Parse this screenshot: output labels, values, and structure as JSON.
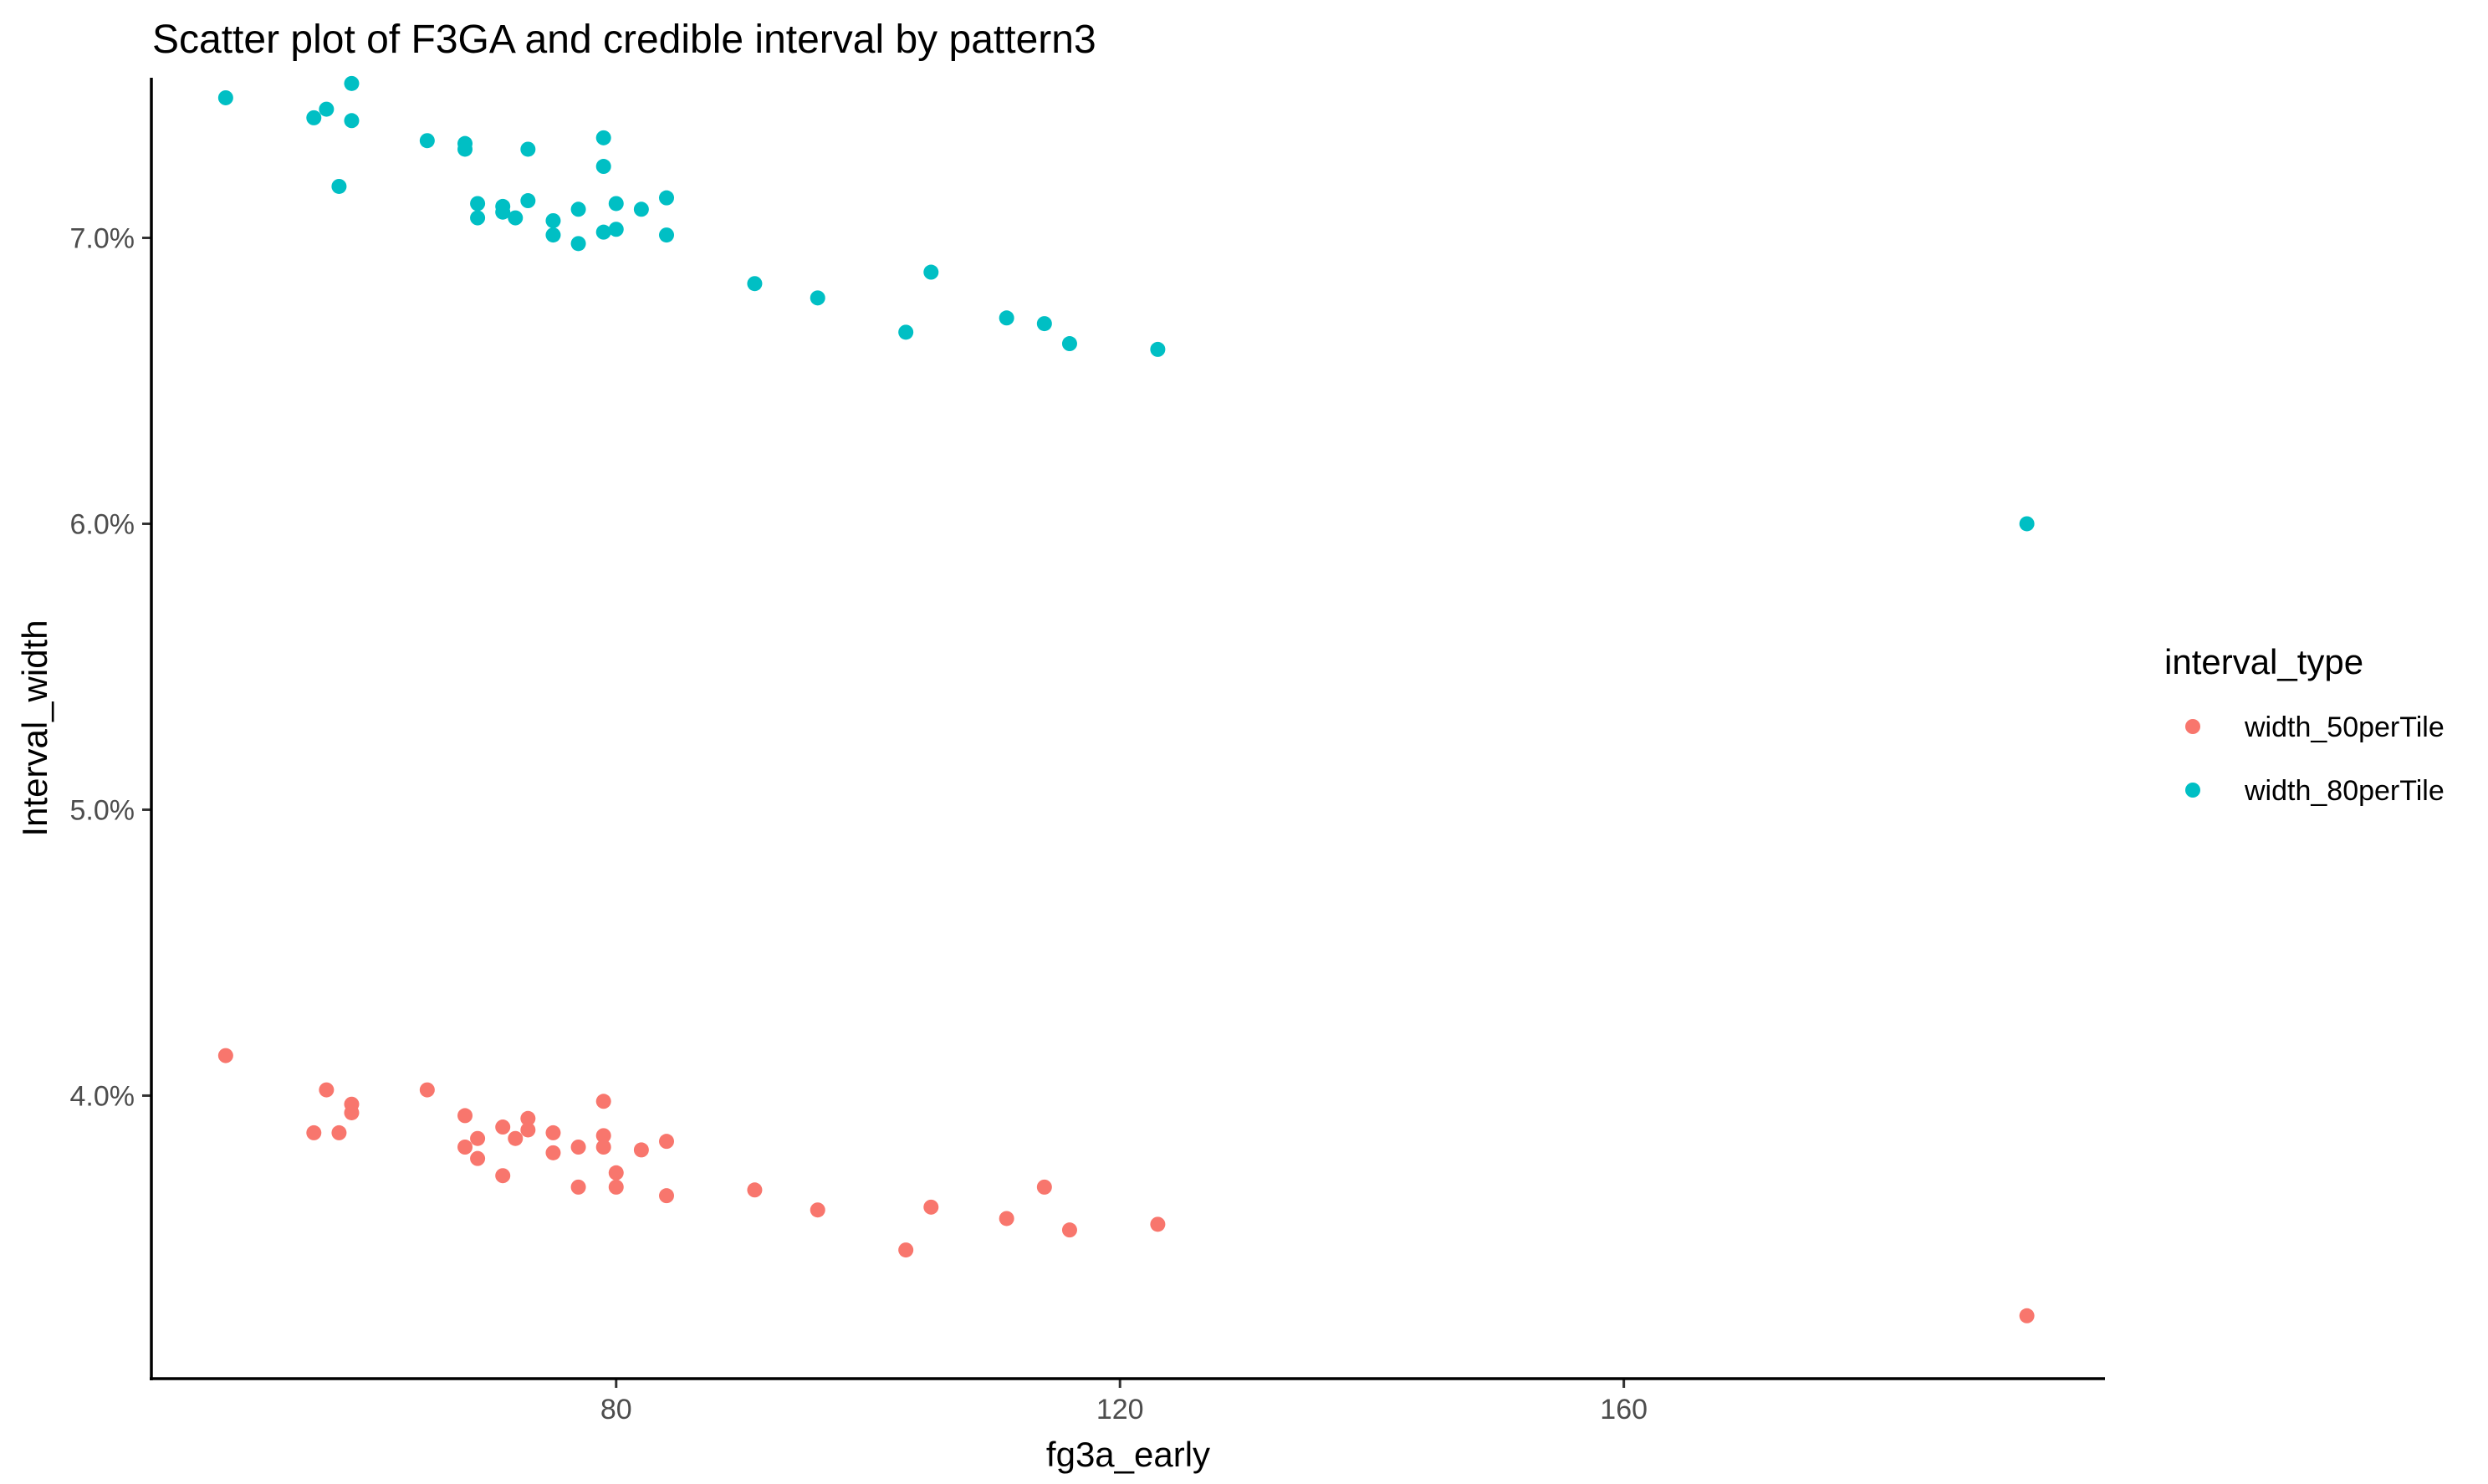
{
  "chart_data": {
    "type": "scatter",
    "title": "Scatter plot of F3GA and credible interval by pattern3",
    "xlabel": "fg3a_early",
    "ylabel": "Interval_width",
    "x_ticks": [
      80,
      120,
      160
    ],
    "x_tick_labels": [
      "80",
      "120",
      "160"
    ],
    "y_ticks": [
      0.04,
      0.05,
      0.06,
      0.07
    ],
    "y_tick_labels": [
      "4.0%",
      "5.0%",
      "6.0%",
      "7.0%"
    ],
    "xlim": [
      43.1,
      198.2
    ],
    "ylim": [
      0.0301,
      0.0756
    ],
    "grid": false,
    "legend": {
      "title": "interval_type",
      "position": "right"
    },
    "series": [
      {
        "name": "width_50perTile",
        "color": "#F8766D",
        "points": [
          [
            49,
            0.0414
          ],
          [
            56,
            0.0387
          ],
          [
            57,
            0.0402
          ],
          [
            58,
            0.0387
          ],
          [
            59,
            0.0397
          ],
          [
            59,
            0.0394
          ],
          [
            65,
            0.0402
          ],
          [
            68,
            0.0393
          ],
          [
            68,
            0.0382
          ],
          [
            69,
            0.0385
          ],
          [
            69,
            0.0378
          ],
          [
            71,
            0.0389
          ],
          [
            71,
            0.0372
          ],
          [
            72,
            0.0385
          ],
          [
            73,
            0.0392
          ],
          [
            73,
            0.0388
          ],
          [
            75,
            0.0387
          ],
          [
            75,
            0.038
          ],
          [
            77,
            0.0382
          ],
          [
            77,
            0.0368
          ],
          [
            79,
            0.0398
          ],
          [
            79,
            0.0386
          ],
          [
            79,
            0.0382
          ],
          [
            80,
            0.0373
          ],
          [
            80,
            0.0368
          ],
          [
            82,
            0.0381
          ],
          [
            84,
            0.0384
          ],
          [
            84,
            0.0365
          ],
          [
            91,
            0.0367
          ],
          [
            96,
            0.036
          ],
          [
            103,
            0.0346
          ],
          [
            105,
            0.0361
          ],
          [
            111,
            0.0357
          ],
          [
            114,
            0.0368
          ],
          [
            116,
            0.0353
          ],
          [
            123,
            0.0355
          ],
          [
            192,
            0.0323
          ]
        ]
      },
      {
        "name": "width_80perTile",
        "color": "#00BFC4",
        "points": [
          [
            49,
            0.0749
          ],
          [
            56,
            0.0742
          ],
          [
            57,
            0.0745
          ],
          [
            58,
            0.0718
          ],
          [
            59,
            0.0754
          ],
          [
            59,
            0.0741
          ],
          [
            65,
            0.0734
          ],
          [
            68,
            0.0733
          ],
          [
            68,
            0.0731
          ],
          [
            69,
            0.0712
          ],
          [
            69,
            0.0707
          ],
          [
            71,
            0.0711
          ],
          [
            71,
            0.0709
          ],
          [
            72,
            0.0707
          ],
          [
            73,
            0.0731
          ],
          [
            73,
            0.0713
          ],
          [
            75,
            0.0706
          ],
          [
            75,
            0.0701
          ],
          [
            77,
            0.071
          ],
          [
            77,
            0.0698
          ],
          [
            79,
            0.0735
          ],
          [
            79,
            0.0725
          ],
          [
            79,
            0.0702
          ],
          [
            80,
            0.0712
          ],
          [
            80,
            0.0703
          ],
          [
            82,
            0.071
          ],
          [
            84,
            0.0714
          ],
          [
            84,
            0.0701
          ],
          [
            91,
            0.0684
          ],
          [
            96,
            0.0679
          ],
          [
            103,
            0.0667
          ],
          [
            105,
            0.0688
          ],
          [
            111,
            0.0672
          ],
          [
            114,
            0.067
          ],
          [
            116,
            0.0663
          ],
          [
            123,
            0.0661
          ],
          [
            192,
            0.06
          ]
        ]
      }
    ]
  }
}
